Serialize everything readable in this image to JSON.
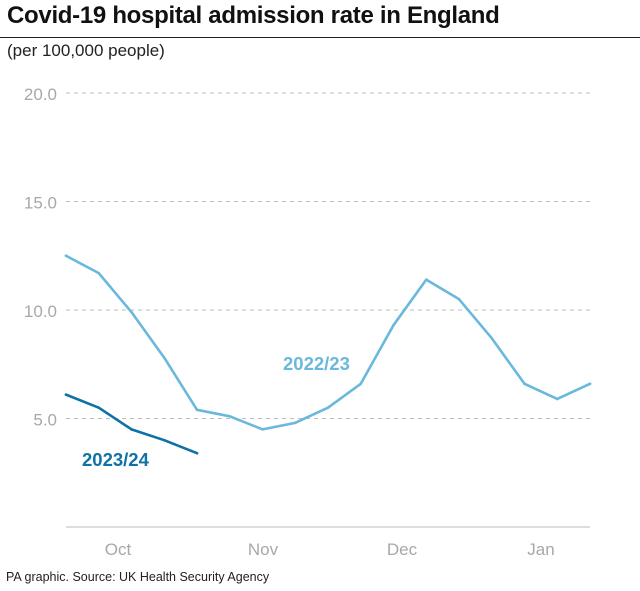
{
  "title": "Covid-19 hospital admission rate in England",
  "subtitle": "(per 100,000 people)",
  "source": "PA graphic. Source: UK Health Security Agency",
  "colors": {
    "series_2022_23": "#6bb8dd",
    "series_2023_24": "#0f72a6",
    "tick_text": "#a8a8a8",
    "grid": "#bdbdbd"
  },
  "chart_data": {
    "type": "line",
    "ylim": [
      0,
      20
    ],
    "yticks": [
      "20.0",
      "15.0",
      "10.0",
      "5.0"
    ],
    "xticks": [
      "Oct",
      "Nov",
      "Dec",
      "Jan"
    ],
    "grid": true,
    "series": [
      {
        "name": "2022/23",
        "x": [
          0,
          1,
          2,
          3,
          4,
          5,
          6,
          7,
          8,
          9,
          10,
          11,
          12,
          13,
          14,
          15,
          16
        ],
        "values": [
          12.5,
          11.7,
          9.9,
          7.8,
          5.4,
          5.1,
          4.5,
          4.8,
          5.5,
          6.6,
          9.3,
          11.4,
          10.5,
          8.7,
          6.6,
          5.9,
          6.6
        ]
      },
      {
        "name": "2023/24",
        "x": [
          0,
          1,
          2,
          3,
          4
        ],
        "values": [
          6.1,
          5.5,
          4.5,
          4.0,
          3.4
        ]
      }
    ]
  }
}
